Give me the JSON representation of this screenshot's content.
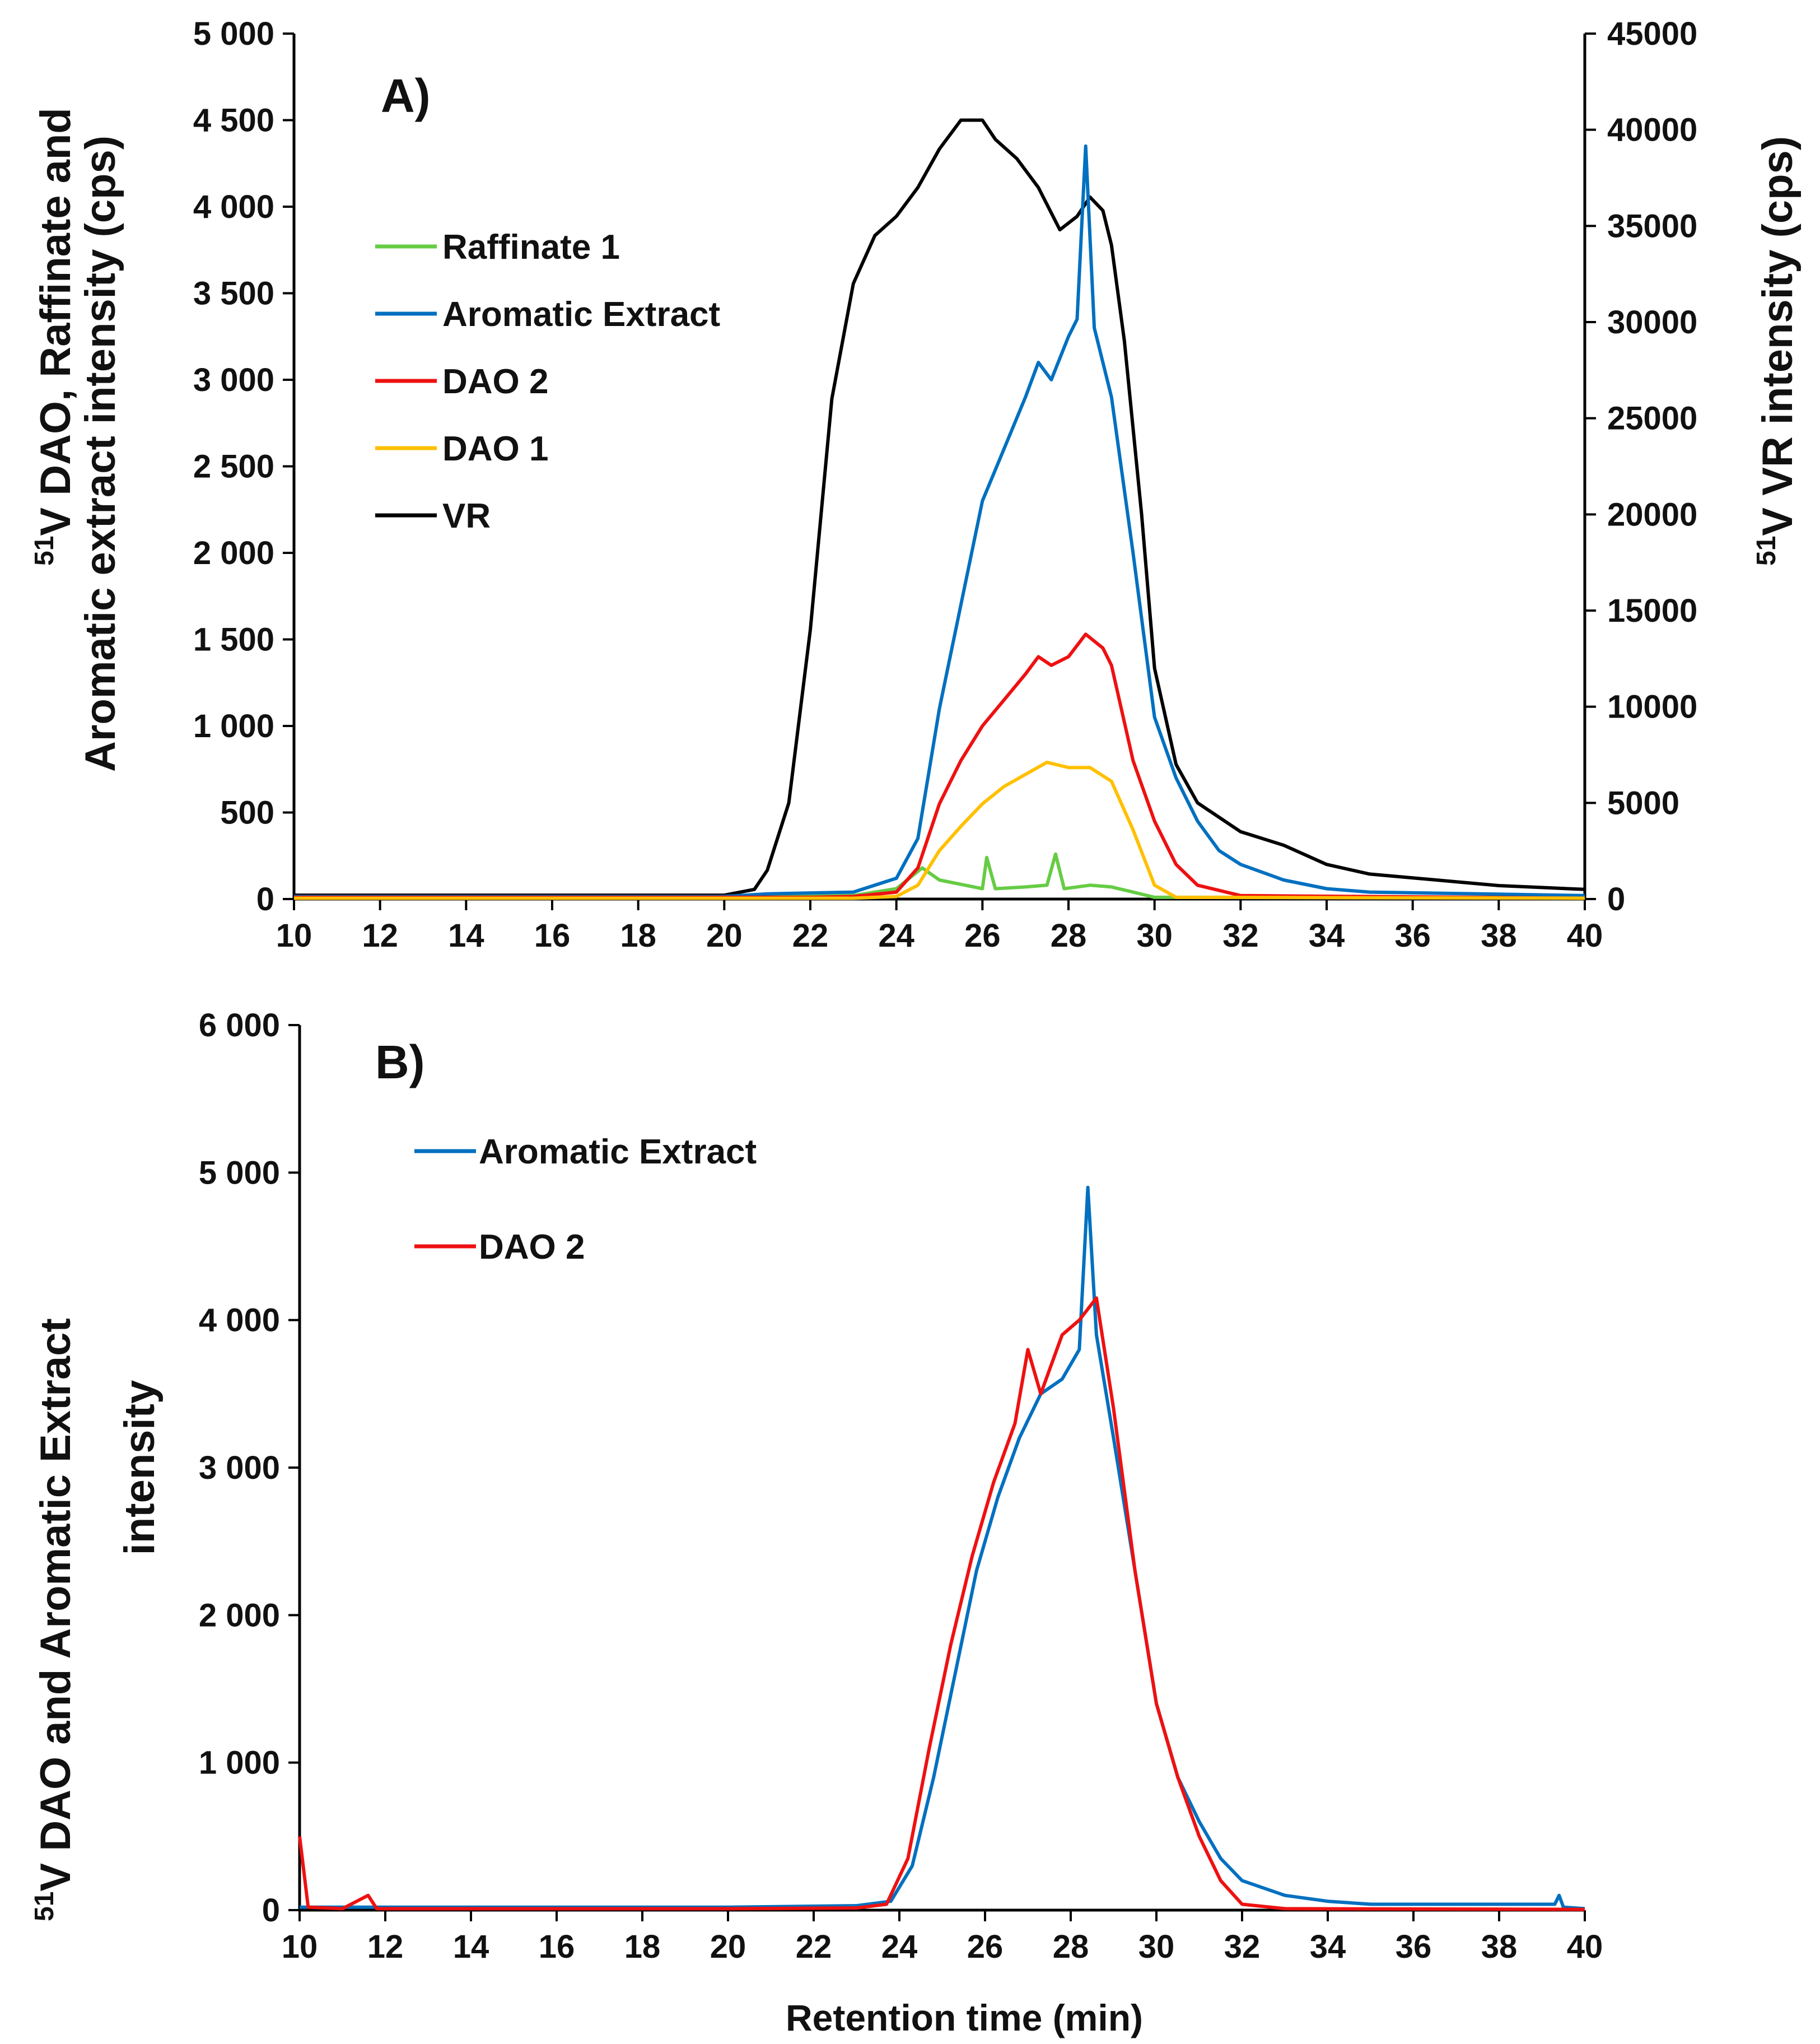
{
  "chart_data": [
    {
      "panel": "A)",
      "type": "line",
      "x_range": [
        10,
        40
      ],
      "x_ticks": [
        10,
        12,
        14,
        16,
        18,
        20,
        22,
        24,
        26,
        28,
        30,
        32,
        34,
        36,
        38,
        40
      ],
      "ylabel_left": "51V DAO, Raffinate and Aromatic extract intensity (cps)",
      "ylabel_left_sup": "51",
      "ylabel_left_lines": [
        "V DAO, Raffinate and",
        "Aromatic extract intensity (cps)"
      ],
      "ylim_left": [
        0,
        5000
      ],
      "yticks_left": [
        "0",
        "500",
        "1 000",
        "1 500",
        "2 000",
        "2 500",
        "3 000",
        "3 500",
        "4 000",
        "4 500",
        "5 000"
      ],
      "ylabel_right": "51V VR intensity (cps)",
      "ylabel_right_sup": "51",
      "ylabel_right_text": "V VR intensity (cps)",
      "ylim_right": [
        0,
        45000
      ],
      "yticks_right": [
        "0",
        "5000",
        "10000",
        "15000",
        "20000",
        "25000",
        "30000",
        "35000",
        "40000",
        "45000"
      ],
      "legend": [
        "Raffinate 1",
        "Aromatic Extract",
        "DAO 2",
        "DAO 1",
        "VR"
      ],
      "series": [
        {
          "name": "Raffinate 1",
          "color": "#66cc44",
          "axis": "left",
          "points": [
            [
              10,
              10
            ],
            [
              20,
              10
            ],
            [
              23,
              20
            ],
            [
              24,
              60
            ],
            [
              24.6,
              180
            ],
            [
              25,
              110
            ],
            [
              25.6,
              80
            ],
            [
              26,
              60
            ],
            [
              26.1,
              240
            ],
            [
              26.3,
              60
            ],
            [
              27,
              70
            ],
            [
              27.5,
              80
            ],
            [
              27.7,
              260
            ],
            [
              27.9,
              60
            ],
            [
              28.5,
              80
            ],
            [
              29,
              70
            ],
            [
              29.5,
              40
            ],
            [
              30,
              10
            ],
            [
              40,
              10
            ]
          ]
        },
        {
          "name": "Aromatic Extract",
          "color": "#0070c0",
          "axis": "left",
          "points": [
            [
              10,
              15
            ],
            [
              20,
              15
            ],
            [
              21,
              30
            ],
            [
              23,
              40
            ],
            [
              24,
              120
            ],
            [
              24.5,
              350
            ],
            [
              25,
              1100
            ],
            [
              25.5,
              1700
            ],
            [
              26,
              2300
            ],
            [
              26.5,
              2600
            ],
            [
              27,
              2900
            ],
            [
              27.3,
              3100
            ],
            [
              27.6,
              3000
            ],
            [
              28,
              3250
            ],
            [
              28.2,
              3350
            ],
            [
              28.4,
              4350
            ],
            [
              28.6,
              3300
            ],
            [
              29,
              2900
            ],
            [
              29.5,
              2000
            ],
            [
              30,
              1050
            ],
            [
              30.5,
              700
            ],
            [
              31,
              450
            ],
            [
              31.5,
              280
            ],
            [
              32,
              200
            ],
            [
              33,
              110
            ],
            [
              34,
              60
            ],
            [
              35,
              40
            ],
            [
              40,
              20
            ]
          ]
        },
        {
          "name": "DAO 2",
          "color": "#ee1111",
          "axis": "left",
          "points": [
            [
              10,
              10
            ],
            [
              22,
              10
            ],
            [
              23,
              15
            ],
            [
              24,
              40
            ],
            [
              24.5,
              180
            ],
            [
              25,
              550
            ],
            [
              25.5,
              800
            ],
            [
              26,
              1000
            ],
            [
              26.5,
              1150
            ],
            [
              27,
              1300
            ],
            [
              27.3,
              1400
            ],
            [
              27.6,
              1350
            ],
            [
              28,
              1400
            ],
            [
              28.4,
              1530
            ],
            [
              28.8,
              1450
            ],
            [
              29,
              1350
            ],
            [
              29.5,
              800
            ],
            [
              30,
              450
            ],
            [
              30.5,
              200
            ],
            [
              31,
              80
            ],
            [
              32,
              20
            ],
            [
              40,
              5
            ]
          ]
        },
        {
          "name": "DAO 1",
          "color": "#ffc000",
          "axis": "left",
          "points": [
            [
              10,
              5
            ],
            [
              23,
              5
            ],
            [
              24,
              15
            ],
            [
              24.5,
              80
            ],
            [
              25,
              280
            ],
            [
              25.5,
              420
            ],
            [
              26,
              550
            ],
            [
              26.5,
              650
            ],
            [
              27,
              720
            ],
            [
              27.5,
              790
            ],
            [
              28,
              760
            ],
            [
              28.5,
              760
            ],
            [
              29,
              680
            ],
            [
              29.5,
              400
            ],
            [
              30,
              80
            ],
            [
              30.5,
              10
            ],
            [
              40,
              5
            ]
          ]
        },
        {
          "name": "VR",
          "color": "#000000",
          "axis": "right",
          "points": [
            [
              10,
              200
            ],
            [
              20,
              200
            ],
            [
              20.7,
              500
            ],
            [
              21,
              1500
            ],
            [
              21.5,
              5000
            ],
            [
              22,
              14000
            ],
            [
              22.5,
              26000
            ],
            [
              23,
              32000
            ],
            [
              23.5,
              34500
            ],
            [
              24,
              35500
            ],
            [
              24.5,
              37000
            ],
            [
              25,
              39000
            ],
            [
              25.5,
              40500
            ],
            [
              26,
              40500
            ],
            [
              26.3,
              39500
            ],
            [
              26.8,
              38500
            ],
            [
              27.3,
              37000
            ],
            [
              27.8,
              34800
            ],
            [
              28.2,
              35500
            ],
            [
              28.5,
              36500
            ],
            [
              28.8,
              35800
            ],
            [
              29,
              34000
            ],
            [
              29.3,
              29000
            ],
            [
              29.7,
              20000
            ],
            [
              30,
              12000
            ],
            [
              30.5,
              7000
            ],
            [
              31,
              5000
            ],
            [
              32,
              3500
            ],
            [
              33,
              2800
            ],
            [
              34,
              1800
            ],
            [
              35,
              1300
            ],
            [
              36,
              1100
            ],
            [
              37,
              900
            ],
            [
              38,
              700
            ],
            [
              39,
              600
            ],
            [
              40,
              500
            ]
          ]
        }
      ]
    },
    {
      "panel": "B)",
      "type": "line",
      "x_range": [
        10,
        40
      ],
      "x_ticks": [
        10,
        12,
        14,
        16,
        18,
        20,
        22,
        24,
        26,
        28,
        30,
        32,
        34,
        36,
        38,
        40
      ],
      "xlabel": "Retention time (min)",
      "ylabel": "51V DAO and Aromatic Extract intensity",
      "ylabel_sup": "51",
      "ylabel_lines": [
        "V DAO and Aromatic Extract",
        "intensity"
      ],
      "ylim": [
        0,
        6000
      ],
      "yticks": [
        "0",
        "1 000",
        "2 000",
        "3 000",
        "4 000",
        "5 000",
        "6 000"
      ],
      "legend": [
        "Aromatic Extract",
        "DAO 2"
      ],
      "series": [
        {
          "name": "Aromatic Extract",
          "color": "#0070c0",
          "points": [
            [
              10,
              20
            ],
            [
              20,
              20
            ],
            [
              23,
              30
            ],
            [
              23.8,
              60
            ],
            [
              24.3,
              300
            ],
            [
              24.8,
              900
            ],
            [
              25.3,
              1600
            ],
            [
              25.8,
              2300
            ],
            [
              26.3,
              2800
            ],
            [
              26.8,
              3200
            ],
            [
              27.3,
              3500
            ],
            [
              27.8,
              3600
            ],
            [
              28.2,
              3800
            ],
            [
              28.4,
              4900
            ],
            [
              28.6,
              3900
            ],
            [
              29,
              3200
            ],
            [
              29.5,
              2300
            ],
            [
              30,
              1400
            ],
            [
              30.5,
              900
            ],
            [
              31,
              600
            ],
            [
              31.5,
              350
            ],
            [
              32,
              200
            ],
            [
              33,
              100
            ],
            [
              34,
              60
            ],
            [
              35,
              40
            ],
            [
              39.3,
              40
            ],
            [
              39.4,
              100
            ],
            [
              39.5,
              20
            ],
            [
              40,
              10
            ]
          ]
        },
        {
          "name": "DAO 2",
          "color": "#ee1111",
          "points": [
            [
              10,
              500
            ],
            [
              10.2,
              20
            ],
            [
              11,
              10
            ],
            [
              11.6,
              100
            ],
            [
              11.8,
              10
            ],
            [
              20,
              10
            ],
            [
              23,
              15
            ],
            [
              23.7,
              40
            ],
            [
              24.2,
              350
            ],
            [
              24.7,
              1100
            ],
            [
              25.2,
              1800
            ],
            [
              25.7,
              2400
            ],
            [
              26.2,
              2900
            ],
            [
              26.7,
              3300
            ],
            [
              27,
              3800
            ],
            [
              27.3,
              3500
            ],
            [
              27.8,
              3900
            ],
            [
              28.2,
              4000
            ],
            [
              28.6,
              4150
            ],
            [
              29,
              3400
            ],
            [
              29.5,
              2300
            ],
            [
              30,
              1400
            ],
            [
              30.5,
              900
            ],
            [
              31,
              500
            ],
            [
              31.5,
              200
            ],
            [
              32,
              40
            ],
            [
              33,
              10
            ],
            [
              40,
              5
            ]
          ]
        }
      ]
    }
  ]
}
